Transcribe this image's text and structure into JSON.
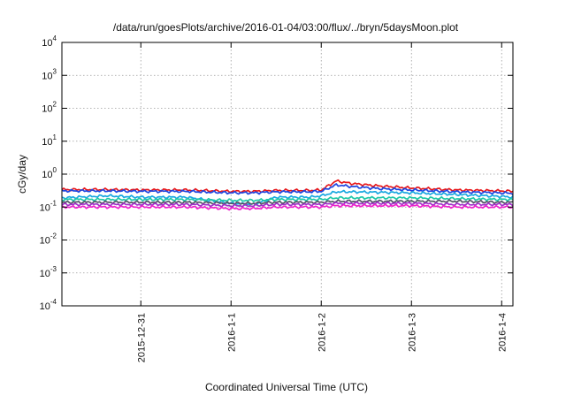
{
  "chart_data": {
    "type": "line",
    "title": "/data/run/goesPlots/archive/2016-01-04/03:00/flux/../bryn/5daysMoon.plot",
    "xlabel": "Coordinated Universal Time (UTC)",
    "ylabel": "cGy/day",
    "xlim": [
      "2015-12-30T03:00",
      "2016-01-04T03:00"
    ],
    "ylim": [
      0.0001,
      10000
    ],
    "yscale": "log",
    "grid": true,
    "x_ticks": [
      {
        "label": "2015-12-31",
        "date": "2015-12-31T00:00"
      },
      {
        "label": "2016-1-1",
        "date": "2016-01-01T00:00"
      },
      {
        "label": "2016-1-2",
        "date": "2016-01-02T00:00"
      },
      {
        "label": "2016-1-3",
        "date": "2016-01-03T00:00"
      },
      {
        "label": "2016-1-4",
        "date": "2016-01-04T00:00"
      }
    ],
    "y_ticks": [
      {
        "base": "10",
        "exp": "-4",
        "value": 0.0001
      },
      {
        "base": "10",
        "exp": "-3",
        "value": 0.001
      },
      {
        "base": "10",
        "exp": "-2",
        "value": 0.01
      },
      {
        "base": "10",
        "exp": "-1",
        "value": 0.1
      },
      {
        "base": "10",
        "exp": "0",
        "value": 1
      },
      {
        "base": "10",
        "exp": "1",
        "value": 10
      },
      {
        "base": "10",
        "exp": "2",
        "value": 100
      },
      {
        "base": "10",
        "exp": "3",
        "value": 1000
      },
      {
        "base": "10",
        "exp": "4",
        "value": 10000
      }
    ],
    "x": [
      "2015-12-30T03:00",
      "2015-12-30T15:00",
      "2015-12-31T00:00",
      "2015-12-31T12:00",
      "2016-01-01T00:00",
      "2016-01-01T06:00",
      "2016-01-01T12:00",
      "2016-01-01T21:00",
      "2016-01-02T00:00",
      "2016-01-02T04:00",
      "2016-01-02T08:00",
      "2016-01-02T16:00",
      "2016-01-03T00:00",
      "2016-01-03T12:00",
      "2016-01-04T00:00",
      "2016-01-04T03:00"
    ],
    "series": [
      {
        "color": "#e8191c",
        "values": [
          0.34,
          0.34,
          0.33,
          0.33,
          0.3,
          0.3,
          0.32,
          0.32,
          0.33,
          0.62,
          0.52,
          0.43,
          0.38,
          0.33,
          0.31,
          0.3
        ]
      },
      {
        "color": "#1e45e0",
        "values": [
          0.31,
          0.31,
          0.3,
          0.3,
          0.27,
          0.27,
          0.29,
          0.29,
          0.3,
          0.47,
          0.42,
          0.36,
          0.33,
          0.29,
          0.27,
          0.26
        ]
      },
      {
        "color": "#19a8e0",
        "values": [
          0.19,
          0.22,
          0.2,
          0.2,
          0.13,
          0.12,
          0.2,
          0.2,
          0.22,
          0.29,
          0.29,
          0.28,
          0.27,
          0.24,
          0.21,
          0.2
        ]
      },
      {
        "color": "#1fc8a8",
        "values": [
          0.17,
          0.17,
          0.17,
          0.17,
          0.16,
          0.16,
          0.17,
          0.17,
          0.17,
          0.19,
          0.19,
          0.19,
          0.19,
          0.18,
          0.17,
          0.17
        ]
      },
      {
        "color": "#555566",
        "values": [
          0.14,
          0.14,
          0.14,
          0.14,
          0.13,
          0.13,
          0.14,
          0.14,
          0.14,
          0.15,
          0.15,
          0.15,
          0.15,
          0.15,
          0.14,
          0.14
        ]
      },
      {
        "color": "#a030c8",
        "values": [
          0.12,
          0.12,
          0.12,
          0.12,
          0.11,
          0.11,
          0.12,
          0.12,
          0.12,
          0.13,
          0.13,
          0.13,
          0.13,
          0.12,
          0.12,
          0.12
        ]
      },
      {
        "color": "#ee22cc",
        "values": [
          0.1,
          0.1,
          0.1,
          0.1,
          0.09,
          0.09,
          0.1,
          0.1,
          0.1,
          0.11,
          0.11,
          0.11,
          0.11,
          0.1,
          0.1,
          0.1
        ]
      }
    ]
  }
}
